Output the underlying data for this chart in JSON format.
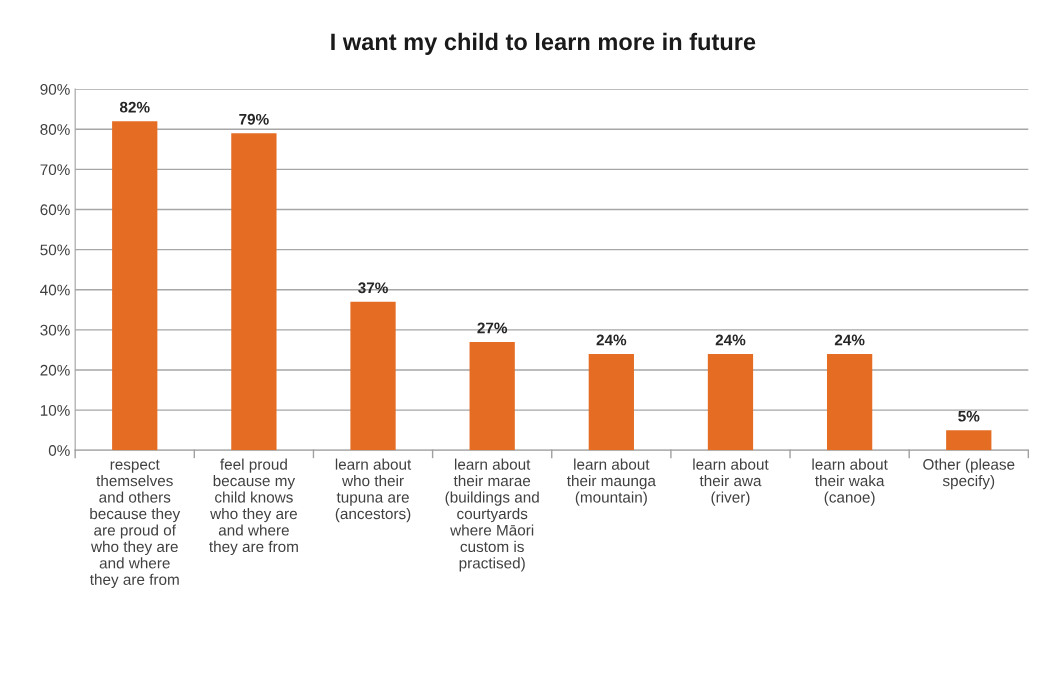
{
  "chart_data": {
    "type": "bar",
    "title": "I want my child to learn more in future",
    "categories": [
      "respect\nthemselves\nand others\nbecause they\nare proud of\nwho they are\nand where\nthey are from",
      "feel proud\nbecause my\nchild knows\nwho they are\nand where\nthey are from",
      "learn about\nwho their\ntupuna are\n(ancestors)",
      "learn about\ntheir marae\n(buildings and\ncourtyards\nwhere Māori\ncustom is\npractised)",
      "learn about\ntheir maunga\n(mountain)",
      "learn about\ntheir awa\n(river)",
      "learn about\ntheir waka\n(canoe)",
      "Other (please\nspecify)"
    ],
    "values": [
      82,
      79,
      37,
      27,
      24,
      24,
      24,
      5
    ],
    "value_labels": [
      "82%",
      "79%",
      "37%",
      "27%",
      "24%",
      "24%",
      "24%",
      "5%"
    ],
    "color": "#e46c23",
    "ylim": [
      0,
      90
    ],
    "yticks": [
      {
        "value": 0,
        "label": "0%"
      },
      {
        "value": 10,
        "label": "10%"
      },
      {
        "value": 20,
        "label": "20%"
      },
      {
        "value": 30,
        "label": "30%"
      },
      {
        "value": 40,
        "label": "40%"
      },
      {
        "value": 50,
        "label": "50%"
      },
      {
        "value": 60,
        "label": "60%"
      },
      {
        "value": 70,
        "label": "70%"
      },
      {
        "value": 80,
        "label": "80%"
      },
      {
        "value": 90,
        "label": "90%"
      }
    ],
    "grid": "y"
  }
}
